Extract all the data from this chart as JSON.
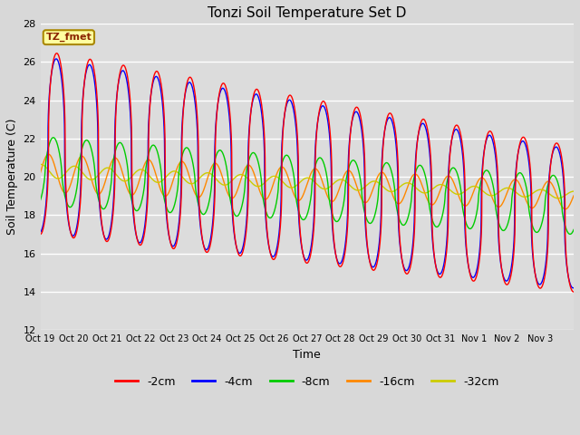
{
  "title": "Tonzi Soil Temperature Set D",
  "xlabel": "Time",
  "ylabel": "Soil Temperature (C)",
  "ylim": [
    12,
    28
  ],
  "yticks": [
    12,
    14,
    16,
    18,
    20,
    22,
    24,
    26,
    28
  ],
  "annotation": "TZ_fmet",
  "fig_bg_color": "#e8e8e8",
  "ax_bg_color": "#e0e0e0",
  "line_colors": {
    "-2cm": "#ff0000",
    "-4cm": "#0000ff",
    "-8cm": "#00cc00",
    "-16cm": "#ff8800",
    "-32cm": "#cccc00"
  },
  "legend_labels": [
    "-2cm",
    "-4cm",
    "-8cm",
    "-16cm",
    "-32cm"
  ],
  "n_days": 16,
  "points_per_day": 240,
  "tick_labels": [
    "Oct 19",
    "Oct 20",
    "Oct 21",
    "Oct 22",
    "Oct 23",
    "Oct 24",
    "Oct 25",
    "Oct 26",
    "Oct 27",
    "Oct 28",
    "Oct 29",
    "Oct 30",
    "Oct 31",
    "Nov 1",
    "Nov 2",
    "Nov 3"
  ]
}
